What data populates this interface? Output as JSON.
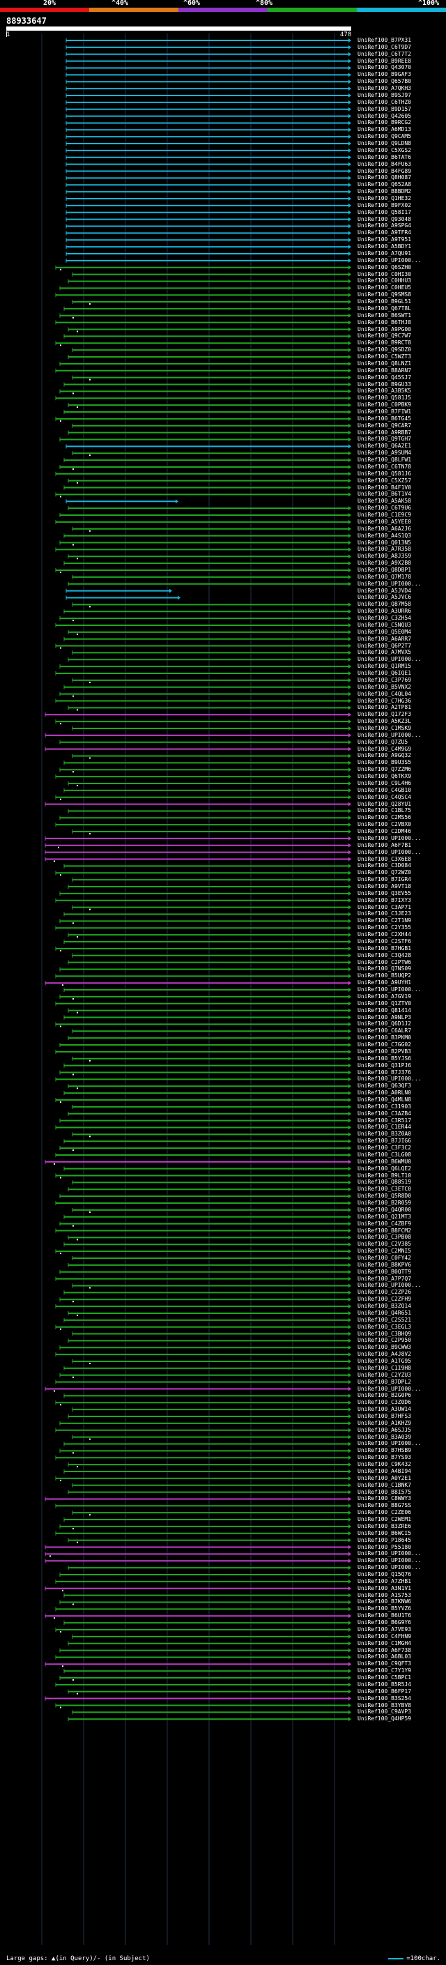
{
  "header": {
    "pct_labels": [
      "20%",
      "^40%",
      "^60%",
      "^80%",
      "^100%"
    ],
    "band_colors": [
      "#e01515",
      "#e07a15",
      "#8e35c9",
      "#1fa81f",
      "#16b5d8"
    ],
    "query_id": "88933647",
    "scale_start": "1",
    "scale_end": "470"
  },
  "colors": {
    "cyan": "#16b5d8",
    "green": "#1fa81f",
    "magenta": "#c13ecb",
    "gap_dot": "#ffffff"
  },
  "hits": [
    {
      "label": "UniRef100_B7PX31",
      "color": "cyan"
    },
    {
      "label": "UniRef100_C6T9D7",
      "color": "cyan"
    },
    {
      "label": "UniRef100_C6T7T2",
      "color": "cyan"
    },
    {
      "label": "UniRef100_B9REE8",
      "color": "cyan"
    },
    {
      "label": "UniRef100_Q43070",
      "color": "cyan"
    },
    {
      "label": "UniRef100_B9GAF3",
      "color": "cyan"
    },
    {
      "label": "UniRef100_Q657B0",
      "color": "cyan"
    },
    {
      "label": "UniRef100_A7QKH3",
      "color": "cyan"
    },
    {
      "label": "UniRef100_B9SJ97",
      "color": "cyan"
    },
    {
      "label": "UniRef100_C6THZ0",
      "color": "cyan"
    },
    {
      "label": "UniRef100_B9D157",
      "color": "cyan"
    },
    {
      "label": "UniRef100_Q42605",
      "color": "cyan"
    },
    {
      "label": "UniRef100_B9RCG2",
      "color": "cyan"
    },
    {
      "label": "UniRef100_A6MD13",
      "color": "cyan"
    },
    {
      "label": "UniRef100_Q9CAM5",
      "color": "cyan"
    },
    {
      "label": "UniRef100_Q9LDN8",
      "color": "cyan"
    },
    {
      "label": "UniRef100_C5XGS2",
      "color": "cyan"
    },
    {
      "label": "UniRef100_B6TAT6",
      "color": "cyan"
    },
    {
      "label": "UniRef100_B4FU63",
      "color": "cyan"
    },
    {
      "label": "UniRef100_B4FG89",
      "color": "cyan"
    },
    {
      "label": "UniRef100_Q8H087",
      "color": "cyan"
    },
    {
      "label": "UniRef100_Q652A8",
      "color": "cyan"
    },
    {
      "label": "UniRef100_B8BDM2",
      "color": "cyan"
    },
    {
      "label": "UniRef100_Q1HE32",
      "color": "cyan"
    },
    {
      "label": "UniRef100_B9FX02",
      "color": "cyan"
    },
    {
      "label": "UniRef100_Q58I17",
      "color": "cyan"
    },
    {
      "label": "UniRef100_Q93048",
      "color": "cyan"
    },
    {
      "label": "UniRef100_A9SPG4",
      "color": "cyan"
    },
    {
      "label": "UniRef100_A9TFR4",
      "color": "cyan"
    },
    {
      "label": "UniRef100_A9T951",
      "color": "cyan"
    },
    {
      "label": "UniRef100_A5BDY1",
      "color": "cyan"
    },
    {
      "label": "UniRef100_A7QU91",
      "color": "cyan"
    },
    {
      "label": "UniRef100_UPI000...",
      "color": "cyan"
    },
    {
      "label": "UniRef100_Q6SZH0",
      "color": "green"
    },
    {
      "label": "UniRef100_C0HI30",
      "color": "green"
    },
    {
      "label": "UniRef100_C0HHU3",
      "color": "green"
    },
    {
      "label": "UniRef100_C0HEU5",
      "color": "green"
    },
    {
      "label": "UniRef100_Q9SMS8",
      "color": "green"
    },
    {
      "label": "UniRef100_B9GL51",
      "color": "green"
    },
    {
      "label": "UniRef100_Q67T8L",
      "color": "green"
    },
    {
      "label": "UniRef100_B6SWT1",
      "color": "green"
    },
    {
      "label": "UniRef100_B6THJ8",
      "color": "green"
    },
    {
      "label": "UniRef100_A9PG00",
      "color": "green"
    },
    {
      "label": "UniRef100_Q9C7W7",
      "color": "green"
    },
    {
      "label": "UniRef100_B9RCT8",
      "color": "green"
    },
    {
      "label": "UniRef100_Q9SDZ0",
      "color": "green"
    },
    {
      "label": "UniRef100_C5WZT3",
      "color": "green"
    },
    {
      "label": "UniRef100_Q8LNZ1",
      "color": "green"
    },
    {
      "label": "UniRef100_B8ARN7",
      "color": "green"
    },
    {
      "label": "UniRef100_Q45SJ7",
      "color": "green"
    },
    {
      "label": "UniRef100_B9GU33",
      "color": "green"
    },
    {
      "label": "UniRef100_A3B5K5",
      "color": "green"
    },
    {
      "label": "UniRef100_Q581J5",
      "color": "green"
    },
    {
      "label": "UniRef100_C0PBK9",
      "color": "green"
    },
    {
      "label": "UniRef100_B7FIW1",
      "color": "green"
    },
    {
      "label": "UniRef100_B6TG45",
      "color": "green"
    },
    {
      "label": "UniRef100_Q9CAR7",
      "color": "green"
    },
    {
      "label": "UniRef100_A9RBB7",
      "color": "green"
    },
    {
      "label": "UniRef100_Q9TGH7",
      "color": "green"
    },
    {
      "label": "UniRef100_Q6A2E1",
      "color": "cyan"
    },
    {
      "label": "UniRef100_A9SUM4",
      "color": "green"
    },
    {
      "label": "UniRef100_Q8LFW1",
      "color": "green"
    },
    {
      "label": "UniRef100_C6TN78",
      "color": "green"
    },
    {
      "label": "UniRef100_Q581J6",
      "color": "green"
    },
    {
      "label": "UniRef100_C5XZ57",
      "color": "green"
    },
    {
      "label": "UniRef100_B4F1V0",
      "color": "green"
    },
    {
      "label": "UniRef100_B6T1V4",
      "color": "green"
    },
    {
      "label": "UniRef100_A5AK58",
      "color": "cyan"
    },
    {
      "label": "UniRef100_C6T9U6",
      "color": "green"
    },
    {
      "label": "UniRef100_C1E9C9",
      "color": "green"
    },
    {
      "label": "UniRef100_A5YEE0",
      "color": "green"
    },
    {
      "label": "UniRef100_A6A2J6",
      "color": "green"
    },
    {
      "label": "UniRef100_A4S1Q3",
      "color": "green"
    },
    {
      "label": "UniRef100_Q013N5",
      "color": "green"
    },
    {
      "label": "UniRef100_A7R358",
      "color": "green"
    },
    {
      "label": "UniRef100_A8J3S9",
      "color": "green"
    },
    {
      "label": "UniRef100_A9X2B8",
      "color": "green"
    },
    {
      "label": "UniRef100_Q8DBP1",
      "color": "green"
    },
    {
      "label": "UniRef100_Q7M178",
      "color": "green"
    },
    {
      "label": "UniRef100_UPI000...",
      "color": "green"
    },
    {
      "label": "UniRef100_A5JVD4",
      "color": "cyan"
    },
    {
      "label": "UniRef100_A5JVC6",
      "color": "cyan"
    },
    {
      "label": "UniRef100_Q87M58",
      "color": "green"
    },
    {
      "label": "UniRef100_A3URR6",
      "color": "green"
    },
    {
      "label": "UniRef100_C3ZH54",
      "color": "green"
    },
    {
      "label": "UniRef100_C5NQU3",
      "color": "green"
    },
    {
      "label": "UniRef100_Q5E0M4",
      "color": "green"
    },
    {
      "label": "UniRef100_A6ARR7",
      "color": "green"
    },
    {
      "label": "UniRef100_Q6P2T7",
      "color": "green"
    },
    {
      "label": "UniRef100_A7MVX5",
      "color": "green"
    },
    {
      "label": "UniRef100_UPI000...",
      "color": "green"
    },
    {
      "label": "UniRef100_Q1RM15",
      "color": "green"
    },
    {
      "label": "UniRef100_Q6IQE1",
      "color": "green"
    },
    {
      "label": "UniRef100_C3P769",
      "color": "green"
    },
    {
      "label": "UniRef100_B5VNX2",
      "color": "green"
    },
    {
      "label": "UniRef100_C4QL04",
      "color": "green"
    },
    {
      "label": "UniRef100_C7HG36",
      "color": "green"
    },
    {
      "label": "UniRef100_A2TP81",
      "color": "green"
    },
    {
      "label": "UniRef100_Q172F3",
      "color": "magenta"
    },
    {
      "label": "UniRef100_A5KZ3L",
      "color": "green"
    },
    {
      "label": "UniRef100_C1MSK9",
      "color": "green"
    },
    {
      "label": "UniRef100_UPI000...",
      "color": "magenta"
    },
    {
      "label": "UniRef100_Q7ZU5",
      "color": "green"
    },
    {
      "label": "UniRef100_C4M9G9",
      "color": "magenta"
    },
    {
      "label": "UniRef100_A9GQ32",
      "color": "green"
    },
    {
      "label": "UniRef100_B9U3S5",
      "color": "green"
    },
    {
      "label": "UniRef100_Q7ZZM6",
      "color": "green"
    },
    {
      "label": "UniRef100_Q6TKX9",
      "color": "green"
    },
    {
      "label": "UniRef100_C9L4H6",
      "color": "green"
    },
    {
      "label": "UniRef100_C4GB10",
      "color": "green"
    },
    {
      "label": "UniRef100_C4QSC4",
      "color": "green"
    },
    {
      "label": "UniRef100_Q28YU1",
      "color": "magenta"
    },
    {
      "label": "UniRef100_C1BL75",
      "color": "green"
    },
    {
      "label": "UniRef100_C2MS56",
      "color": "green"
    },
    {
      "label": "UniRef100_C2VBX0",
      "color": "green"
    },
    {
      "label": "UniRef100_C2DM46",
      "color": "green"
    },
    {
      "label": "UniRef100_UPI000...",
      "color": "magenta"
    },
    {
      "label": "UniRef100_A6F7B1",
      "color": "magenta"
    },
    {
      "label": "UniRef100_UPI000...",
      "color": "magenta"
    },
    {
      "label": "UniRef100_C3X6E8",
      "color": "magenta"
    },
    {
      "label": "UniRef100_C3D084",
      "color": "green"
    },
    {
      "label": "UniRef100_Q72WZ0",
      "color": "green"
    },
    {
      "label": "UniRef100_B7IGR4",
      "color": "green"
    },
    {
      "label": "UniRef100_A9VT18",
      "color": "green"
    },
    {
      "label": "UniRef100_Q3EV55",
      "color": "green"
    },
    {
      "label": "UniRef100_B7IXY3",
      "color": "green"
    },
    {
      "label": "UniRef100_C3AP71",
      "color": "green"
    },
    {
      "label": "UniRef100_C3JE23",
      "color": "green"
    },
    {
      "label": "UniRef100_C2T1N9",
      "color": "green"
    },
    {
      "label": "UniRef100_C2Y355",
      "color": "green"
    },
    {
      "label": "UniRef100_C2XH44",
      "color": "green"
    },
    {
      "label": "UniRef100_C2STF6",
      "color": "green"
    },
    {
      "label": "UniRef100_B7HGB1",
      "color": "green"
    },
    {
      "label": "UniRef100_C3Q428",
      "color": "green"
    },
    {
      "label": "UniRef100_C2PTW6",
      "color": "green"
    },
    {
      "label": "UniRef100_Q7NS09",
      "color": "green"
    },
    {
      "label": "UniRef100_B5UQP2",
      "color": "green"
    },
    {
      "label": "UniRef100_A9UYH1",
      "color": "magenta"
    },
    {
      "label": "UniRef100_UPI000...",
      "color": "green"
    },
    {
      "label": "UniRef100_A7GV19",
      "color": "green"
    },
    {
      "label": "UniRef100_Q1ZTV0",
      "color": "green"
    },
    {
      "label": "UniRef100_Q81414",
      "color": "green"
    },
    {
      "label": "UniRef100_A9NLP3",
      "color": "green"
    },
    {
      "label": "UniRef100_Q6D1J2",
      "color": "green"
    },
    {
      "label": "UniRef100_C6ALR7",
      "color": "green"
    },
    {
      "label": "UniRef100_B3PKM0",
      "color": "green"
    },
    {
      "label": "UniRef100_C7GG02",
      "color": "green"
    },
    {
      "label": "UniRef100_B2PVB3",
      "color": "green"
    },
    {
      "label": "UniRef100_B5YJS6",
      "color": "green"
    },
    {
      "label": "UniRef100_Q31PJ6",
      "color": "green"
    },
    {
      "label": "UniRef100_B7J376",
      "color": "green"
    },
    {
      "label": "UniRef100_UPI000...",
      "color": "green"
    },
    {
      "label": "UniRef100_Q63QF3",
      "color": "green"
    },
    {
      "label": "UniRef100_A0RLN0",
      "color": "green"
    },
    {
      "label": "UniRef100_Q4MLN8",
      "color": "green"
    },
    {
      "label": "UniRef100_C31903",
      "color": "green"
    },
    {
      "label": "UniRef100_C3AZB4",
      "color": "green"
    },
    {
      "label": "UniRef100_C3R517",
      "color": "green"
    },
    {
      "label": "UniRef100_C1ER44",
      "color": "green"
    },
    {
      "label": "UniRef100_B3Z0A0",
      "color": "green"
    },
    {
      "label": "UniRef100_B7JIG6",
      "color": "green"
    },
    {
      "label": "UniRef100_C3F3C2",
      "color": "green"
    },
    {
      "label": "UniRef100_C3LG08",
      "color": "green"
    },
    {
      "label": "UniRef100_B6WMU0",
      "color": "magenta"
    },
    {
      "label": "UniRef100_Q6LQE2",
      "color": "green"
    },
    {
      "label": "UniRef100_B9LT10",
      "color": "green"
    },
    {
      "label": "UniRef100_Q88S19",
      "color": "green"
    },
    {
      "label": "UniRef100_C3ETC0",
      "color": "green"
    },
    {
      "label": "UniRef100_Q5R8D0",
      "color": "green"
    },
    {
      "label": "UniRef100_B2R059",
      "color": "green"
    },
    {
      "label": "UniRef100_Q4QR00",
      "color": "green"
    },
    {
      "label": "UniRef100_Q21MT3",
      "color": "green"
    },
    {
      "label": "UniRef100_C4ZBF9",
      "color": "green"
    },
    {
      "label": "UniRef100_B8FCM2",
      "color": "green"
    },
    {
      "label": "UniRef100_C3PB08",
      "color": "green"
    },
    {
      "label": "UniRef100_C2V385",
      "color": "green"
    },
    {
      "label": "UniRef100_C2MNI5",
      "color": "green"
    },
    {
      "label": "UniRef100_C0FY42",
      "color": "green"
    },
    {
      "label": "UniRef100_B8KPV6",
      "color": "green"
    },
    {
      "label": "UniRef100_B0QTT9",
      "color": "green"
    },
    {
      "label": "UniRef100_A7P7Q7",
      "color": "green"
    },
    {
      "label": "UniRef100_UPI000...",
      "color": "green"
    },
    {
      "label": "UniRef100_C2ZP26",
      "color": "green"
    },
    {
      "label": "UniRef100_C2ZFH9",
      "color": "green"
    },
    {
      "label": "UniRef100_B3ZQ14",
      "color": "green"
    },
    {
      "label": "UniRef100_Q4R651",
      "color": "green"
    },
    {
      "label": "UniRef100_C2S521",
      "color": "green"
    },
    {
      "label": "UniRef100_C3EGL3",
      "color": "green"
    },
    {
      "label": "UniRef100_C3BHQ9",
      "color": "green"
    },
    {
      "label": "UniRef100_C2P950",
      "color": "green"
    },
    {
      "label": "UniRef100_B9CWW3",
      "color": "green"
    },
    {
      "label": "UniRef100_A4J8V2",
      "color": "green"
    },
    {
      "label": "UniRef100_A1TG95",
      "color": "green"
    },
    {
      "label": "UniRef100_C1I9H8",
      "color": "green"
    },
    {
      "label": "UniRef100_C2YZU3",
      "color": "green"
    },
    {
      "label": "UniRef100_B7DPL2",
      "color": "green"
    },
    {
      "label": "UniRef100_UPI000...",
      "color": "magenta"
    },
    {
      "label": "UniRef100_B2G0P6",
      "color": "green"
    },
    {
      "label": "UniRef100_C3Z0D6",
      "color": "green"
    },
    {
      "label": "UniRef100_A3UW14",
      "color": "green"
    },
    {
      "label": "UniRef100_B7HFS3",
      "color": "green"
    },
    {
      "label": "UniRef100_A1KHZ9",
      "color": "green"
    },
    {
      "label": "UniRef100_A6SJJ5",
      "color": "green"
    },
    {
      "label": "UniRef100_B3A039",
      "color": "green"
    },
    {
      "label": "UniRef100_UPI000...",
      "color": "green"
    },
    {
      "label": "UniRef100_B7HSB9",
      "color": "green"
    },
    {
      "label": "UniRef100_B7YS93",
      "color": "green"
    },
    {
      "label": "UniRef100_C9K432",
      "color": "green"
    },
    {
      "label": "UniRef100_A4BI94",
      "color": "green"
    },
    {
      "label": "UniRef100_A0Y2E1",
      "color": "green"
    },
    {
      "label": "UniRef100_C1BNK7",
      "color": "green"
    },
    {
      "label": "UniRef100_B8I575",
      "color": "green"
    },
    {
      "label": "UniRef100_C8WWY3",
      "color": "magenta"
    },
    {
      "label": "UniRef100_B8G7SS",
      "color": "green"
    },
    {
      "label": "UniRef100_C2ZE06",
      "color": "green"
    },
    {
      "label": "UniRef100_C2WEM1",
      "color": "green"
    },
    {
      "label": "UniRef100_B3ZRE6",
      "color": "green"
    },
    {
      "label": "UniRef100_B6WCI5",
      "color": "green"
    },
    {
      "label": "UniRef100_P18645",
      "color": "green"
    },
    {
      "label": "UniRef100_P55180",
      "color": "magenta"
    },
    {
      "label": "UniRef100_UPI000...",
      "color": "magenta"
    },
    {
      "label": "UniRef100_UPI000...",
      "color": "magenta"
    },
    {
      "label": "UniRef100_UPI000...",
      "color": "green"
    },
    {
      "label": "UniRef100_Q15Q76",
      "color": "green"
    },
    {
      "label": "UniRef100_A7ZHB1",
      "color": "green"
    },
    {
      "label": "UniRef100_A3N1V1",
      "color": "magenta"
    },
    {
      "label": "UniRef100_A1S753",
      "color": "green"
    },
    {
      "label": "UniRef100_B7KNW6",
      "color": "green"
    },
    {
      "label": "UniRef100_B5YVZ6",
      "color": "green"
    },
    {
      "label": "UniRef100_B6U1T6",
      "color": "magenta"
    },
    {
      "label": "UniRef100_B6G9Y6",
      "color": "green"
    },
    {
      "label": "UniRef100_A7VE93",
      "color": "green"
    },
    {
      "label": "UniRef100_C4FHN9",
      "color": "green"
    },
    {
      "label": "UniRef100_C1MGH4",
      "color": "green"
    },
    {
      "label": "UniRef100_A6F738",
      "color": "green"
    },
    {
      "label": "UniRef100_A6BL03",
      "color": "green"
    },
    {
      "label": "UniRef100_C9QFT3",
      "color": "magenta"
    },
    {
      "label": "UniRef100_C7Y1Y9",
      "color": "green"
    },
    {
      "label": "UniRef100_C5BPC1",
      "color": "green"
    },
    {
      "label": "UniRef100_B5R5J4",
      "color": "green"
    },
    {
      "label": "UniRef100_B6FP17",
      "color": "green"
    },
    {
      "label": "UniRef100_B3S254",
      "color": "magenta"
    },
    {
      "label": "UniRef100_B3YBV8",
      "color": "green"
    },
    {
      "label": "UniRef100_C9AVP3",
      "color": "green"
    },
    {
      "label": "UniRef100_Q4HP59",
      "color": "green"
    }
  ],
  "legend": {
    "text": "Large gaps: ▲(in Query)/- (in Subject)",
    "scale_text": "=100char."
  }
}
